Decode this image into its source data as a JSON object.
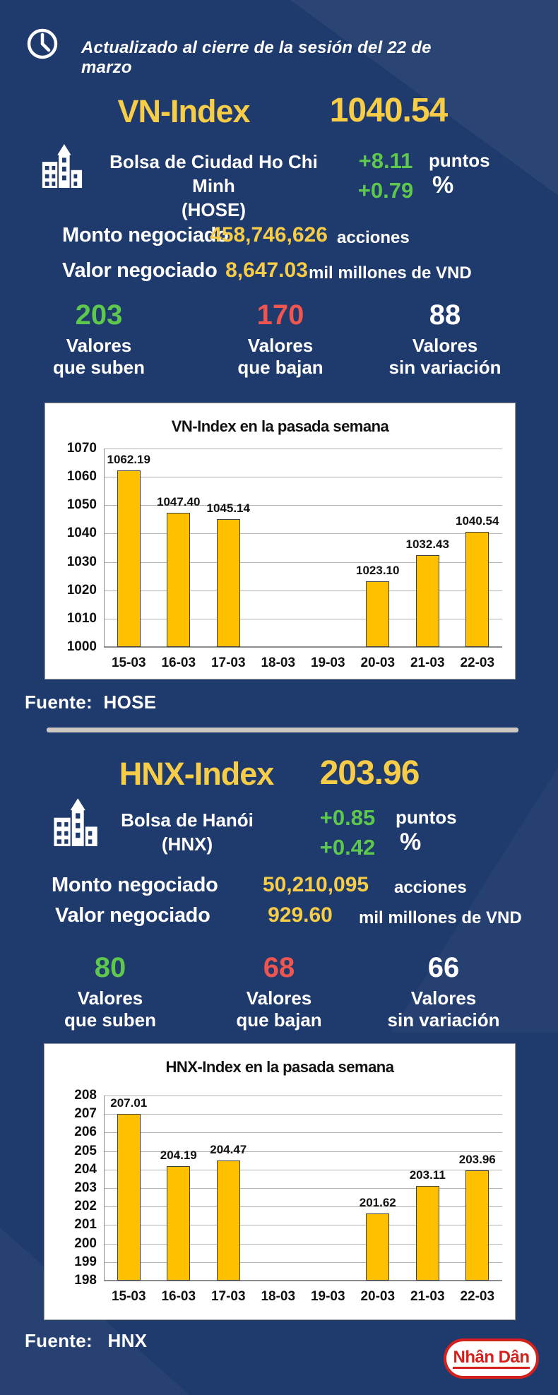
{
  "header": {
    "updated_text": "Actualizado al cierre de la sesión del 22 de marzo",
    "icon": "clock-icon"
  },
  "colors": {
    "background": "#1f3a6d",
    "accent_yellow": "#f7cc46",
    "positive_green": "#5ec84d",
    "negative_red": "#f0554f",
    "bar_fill": "#ffc000",
    "divider": "#ccc9c2",
    "brand_red": "#d6201c"
  },
  "sections": [
    {
      "index_name": "VN-Index",
      "index_value": "1040.54",
      "exchange_icon": "building-icon",
      "exchange_name": "Bolsa de Ciudad Ho Chi Minh",
      "exchange_code": "(HOSE)",
      "change_points": "+8.11",
      "points_label": "puntos",
      "change_percent": "+0.79",
      "percent_label": "%",
      "volume_label": "Monto negociado",
      "volume_value": "458,746,626",
      "volume_unit": "acciones",
      "value_label": "Valor negociado",
      "value_value": "8,647.03",
      "value_unit": "mil millones de VND",
      "advancers": {
        "value": "203",
        "line1": "Valores",
        "line2": "que suben"
      },
      "decliners": {
        "value": "170",
        "line1": "Valores",
        "line2": "que bajan"
      },
      "unchanged": {
        "value": "88",
        "line1": "Valores",
        "line2": "sin variación"
      },
      "source_label": "Fuente:",
      "source_value": "HOSE"
    },
    {
      "index_name": "HNX-Index",
      "index_value": "203.96",
      "exchange_icon": "building-icon",
      "exchange_name": "Bolsa de Hanói",
      "exchange_code": "(HNX)",
      "change_points": "+0.85",
      "points_label": "puntos",
      "change_percent": "+0.42",
      "percent_label": "%",
      "volume_label": "Monto negociado",
      "volume_value": "50,210,095",
      "volume_unit": "acciones",
      "value_label": "Valor negociado",
      "value_value": "929.60",
      "value_unit": "mil millones de VND",
      "advancers": {
        "value": "80",
        "line1": "Valores",
        "line2": "que suben"
      },
      "decliners": {
        "value": "68",
        "line1": "Valores",
        "line2": "que bajan"
      },
      "unchanged": {
        "value": "66",
        "line1": "Valores",
        "line2": "sin variación"
      },
      "source_label": "Fuente:",
      "source_value": "HNX"
    }
  ],
  "chart_data": [
    {
      "type": "bar",
      "title": "VN-Index en la pasada semana",
      "categories": [
        "15-03",
        "16-03",
        "17-03",
        "18-03",
        "19-03",
        "20-03",
        "21-03",
        "22-03"
      ],
      "values": [
        1062.19,
        1047.4,
        1045.14,
        null,
        null,
        1023.1,
        1032.43,
        1040.54
      ],
      "ylim": [
        1000,
        1070
      ],
      "ytick_step": 10,
      "grid": true,
      "legend": "none",
      "bar_color": "#ffc000"
    },
    {
      "type": "bar",
      "title": "HNX-Index en la pasada semana",
      "categories": [
        "15-03",
        "16-03",
        "17-03",
        "18-03",
        "19-03",
        "20-03",
        "21-03",
        "22-03"
      ],
      "values": [
        207.01,
        204.19,
        204.47,
        null,
        null,
        201.62,
        203.11,
        203.96
      ],
      "ylim": [
        198,
        208
      ],
      "ytick_step": 1,
      "grid": true,
      "legend": "none",
      "bar_color": "#ffc000"
    }
  ],
  "footer": {
    "brand": "Nhân Dân"
  }
}
